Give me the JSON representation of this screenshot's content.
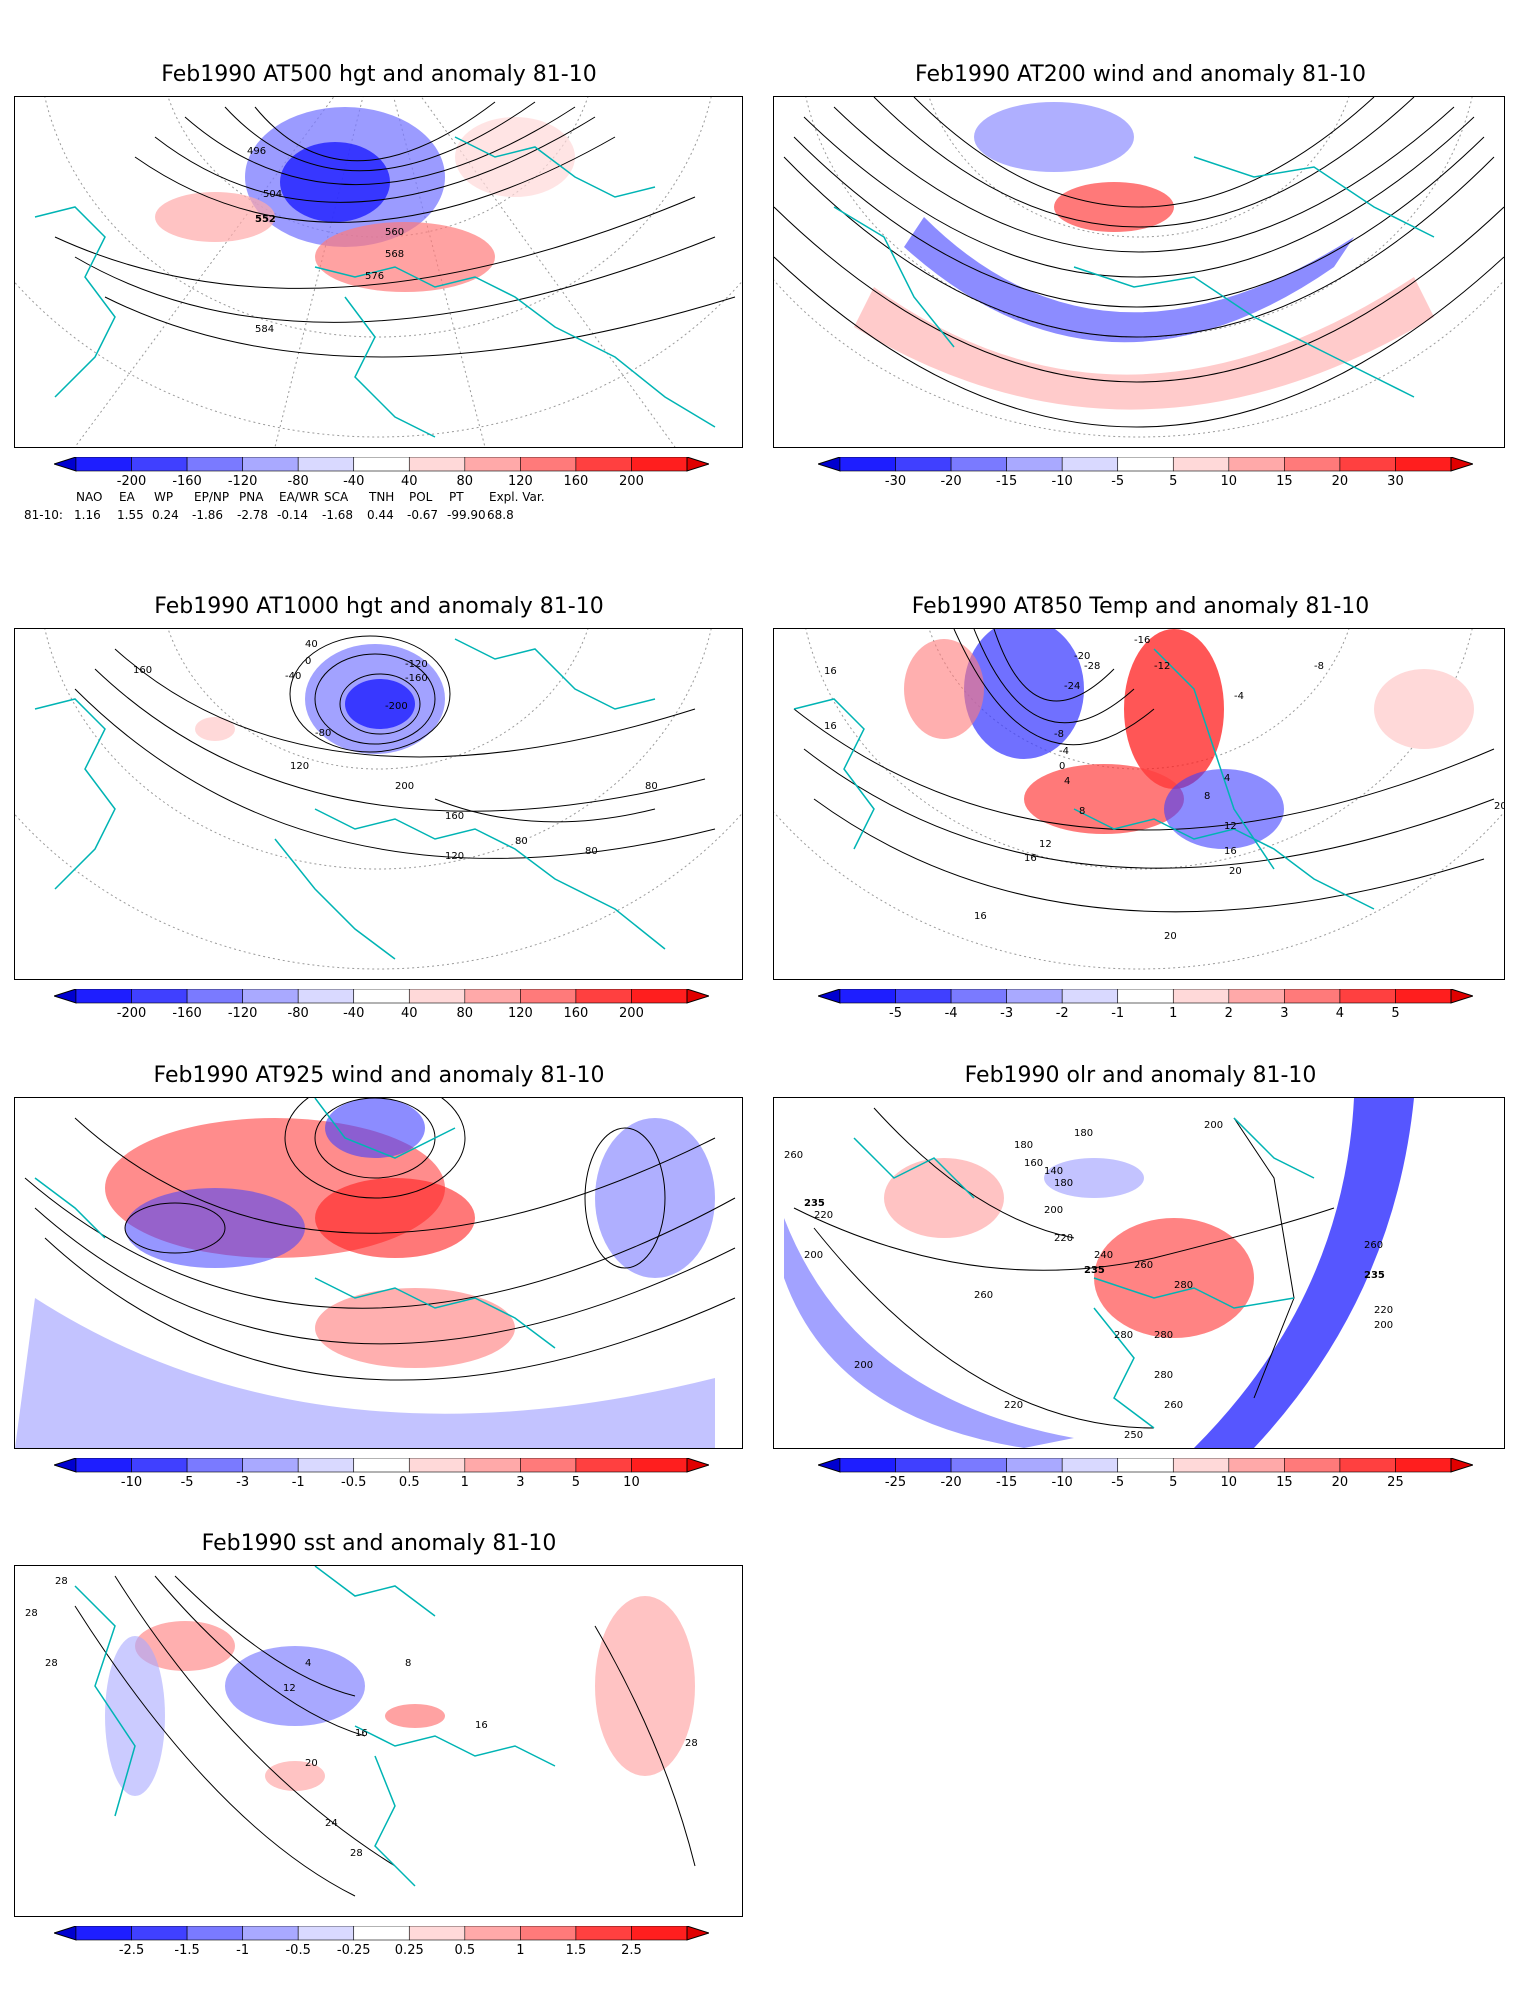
{
  "panels": [
    {
      "title": "Feb1990 AT500 hgt and anomaly 81-10",
      "colorbar": [
        "-200",
        "-160",
        "-120",
        "-80",
        "-40",
        "40",
        "80",
        "120",
        "160",
        "200"
      ],
      "contour_labels": [
        "496",
        "504",
        "552",
        "560",
        "568",
        "576",
        "584"
      ]
    },
    {
      "title": "Feb1990 AT200 wind and anomaly 81-10",
      "colorbar": [
        "-30",
        "-20",
        "-15",
        "-10",
        "-5",
        "5",
        "10",
        "15",
        "20",
        "30"
      ],
      "contour_labels": []
    },
    {
      "title": "Feb1990 AT1000 hgt and anomaly 81-10",
      "colorbar": [
        "-200",
        "-160",
        "-120",
        "-80",
        "-40",
        "40",
        "80",
        "120",
        "160",
        "200"
      ],
      "contour_labels": [
        "160",
        "40",
        "0",
        "-40",
        "-120",
        "-160",
        "-200",
        "-80",
        "120",
        "200",
        "160",
        "120",
        "80",
        "80",
        "80"
      ]
    },
    {
      "title": "Feb1990 AT850 Temp and anomaly 81-10",
      "colorbar": [
        "-5",
        "-4",
        "-3",
        "-2",
        "-1",
        "1",
        "2",
        "3",
        "4",
        "5"
      ],
      "contour_labels": [
        "-16",
        "-12",
        "-8",
        "-4",
        "-20",
        "-24",
        "-28",
        "16",
        "16",
        "-8",
        "-4",
        "0",
        "4",
        "8",
        "12",
        "16",
        "20",
        "8",
        "4",
        "12",
        "16",
        "20",
        "20",
        "16"
      ]
    },
    {
      "title": "Feb1990 AT925 wind and anomaly 81-10",
      "colorbar": [
        "-10",
        "-5",
        "-3",
        "-1",
        "-0.5",
        "0.5",
        "1",
        "3",
        "5",
        "10"
      ],
      "contour_labels": []
    },
    {
      "title": "Feb1990 olr and anomaly 81-10",
      "colorbar": [
        "-25",
        "-20",
        "-15",
        "-10",
        "-5",
        "5",
        "10",
        "15",
        "20",
        "25"
      ],
      "contour_labels": [
        "180",
        "200",
        "180",
        "160",
        "140",
        "180",
        "200",
        "260",
        "235",
        "220",
        "200",
        "220",
        "235",
        "240",
        "260",
        "280",
        "260",
        "235",
        "220",
        "200",
        "280",
        "280",
        "280",
        "260",
        "260",
        "200",
        "220",
        "250"
      ]
    },
    {
      "title": "Feb1990 sst and anomaly 81-10",
      "colorbar": [
        "-2.5",
        "-1.5",
        "-1",
        "-0.5",
        "-0.25",
        "0.25",
        "0.5",
        "1",
        "1.5",
        "2.5"
      ],
      "contour_labels": [
        "28",
        "28",
        "28",
        "12",
        "4",
        "8",
        "16",
        "20",
        "24",
        "28",
        "16",
        "28"
      ]
    }
  ],
  "teleconnection": {
    "headers": [
      "NAO",
      "EA",
      "WP",
      "EP/NP",
      "PNA",
      "EA/WR",
      "SCA",
      "TNH",
      "POL",
      "PT",
      "Expl. Var."
    ],
    "row_label": "81-10:",
    "values": [
      "1.16",
      "1.55",
      "0.24",
      "-1.86",
      "-2.78",
      "-0.14",
      "-1.68",
      "0.44",
      "-0.67",
      "-99.90",
      "68.8"
    ]
  },
  "colors": {
    "blue_scale": [
      "#1e1eff",
      "#4040ff",
      "#7a7aff",
      "#a9a9ff",
      "#d9d9ff"
    ],
    "red_scale": [
      "#ffd9d9",
      "#ffa9a9",
      "#ff7a7a",
      "#ff4040",
      "#ff1e1e"
    ],
    "coast": "#00b4b4",
    "contour": "#000000"
  }
}
